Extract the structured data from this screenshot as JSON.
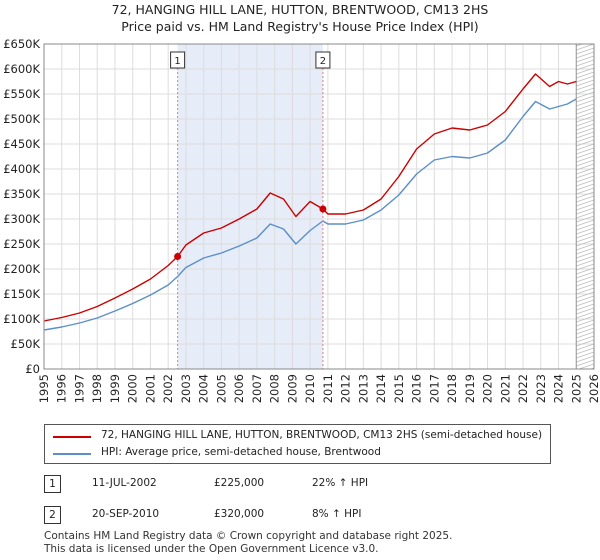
{
  "chart_data": {
    "type": "line",
    "title": "72, HANGING HILL LANE, HUTTON, BRENTWOOD, CM13 2HS",
    "subtitle": "Price paid vs. HM Land Registry's House Price Index (HPI)",
    "xlabel": "",
    "ylabel": "",
    "xlim": [
      1995,
      2026
    ],
    "ylim": [
      0,
      650000
    ],
    "yticks": [
      {
        "value": 0,
        "label": "£0"
      },
      {
        "value": 50000,
        "label": "£50K"
      },
      {
        "value": 100000,
        "label": "£100K"
      },
      {
        "value": 150000,
        "label": "£150K"
      },
      {
        "value": 200000,
        "label": "£200K"
      },
      {
        "value": 250000,
        "label": "£250K"
      },
      {
        "value": 300000,
        "label": "£300K"
      },
      {
        "value": 350000,
        "label": "£350K"
      },
      {
        "value": 400000,
        "label": "£400K"
      },
      {
        "value": 450000,
        "label": "£450K"
      },
      {
        "value": 500000,
        "label": "£500K"
      },
      {
        "value": 550000,
        "label": "£550K"
      },
      {
        "value": 600000,
        "label": "£600K"
      },
      {
        "value": 650000,
        "label": "£650K"
      }
    ],
    "xticks": [
      "1995",
      "1996",
      "1997",
      "1998",
      "1999",
      "2000",
      "2001",
      "2002",
      "2003",
      "2004",
      "2005",
      "2006",
      "2007",
      "2008",
      "2009",
      "2010",
      "2011",
      "2012",
      "2013",
      "2014",
      "2015",
      "2016",
      "2017",
      "2018",
      "2019",
      "2020",
      "2021",
      "2022",
      "2023",
      "2024",
      "2025",
      "2026"
    ],
    "grid": true,
    "shaded_period": [
      2002.53,
      2010.72
    ],
    "forecast_start": 2025.0,
    "series": [
      {
        "name": "72, HANGING HILL LANE, HUTTON, BRENTWOOD, CM13 2HS (semi-detached house)",
        "color": "#cc0000",
        "x": [
          1995.0,
          1996.0,
          1997.0,
          1998.0,
          1999.0,
          2000.0,
          2001.0,
          2002.0,
          2002.53,
          2003.0,
          2004.0,
          2005.0,
          2006.0,
          2007.0,
          2007.75,
          2008.5,
          2009.2,
          2010.0,
          2010.72,
          2011.0,
          2012.0,
          2013.0,
          2014.0,
          2015.0,
          2016.0,
          2017.0,
          2018.0,
          2019.0,
          2020.0,
          2021.0,
          2022.0,
          2022.7,
          2023.5,
          2024.0,
          2024.5,
          2025.0
        ],
        "values": [
          96000,
          103000,
          112000,
          125000,
          142000,
          160000,
          180000,
          207000,
          225000,
          248000,
          272000,
          282000,
          300000,
          320000,
          352000,
          340000,
          305000,
          335000,
          320000,
          310000,
          310000,
          318000,
          340000,
          385000,
          440000,
          470000,
          482000,
          478000,
          488000,
          515000,
          560000,
          590000,
          565000,
          575000,
          570000,
          575000
        ]
      },
      {
        "name": "HPI: Average price, semi-detached house, Brentwood",
        "color": "#5b8fc9",
        "x": [
          1995.0,
          1996.0,
          1997.0,
          1998.0,
          1999.0,
          2000.0,
          2001.0,
          2002.0,
          2002.53,
          2003.0,
          2004.0,
          2005.0,
          2006.0,
          2007.0,
          2007.75,
          2008.5,
          2009.2,
          2010.0,
          2010.72,
          2011.0,
          2012.0,
          2013.0,
          2014.0,
          2015.0,
          2016.0,
          2017.0,
          2018.0,
          2019.0,
          2020.0,
          2021.0,
          2022.0,
          2022.7,
          2023.5,
          2024.0,
          2024.5,
          2025.0
        ],
        "values": [
          78000,
          84000,
          92000,
          102000,
          116000,
          131000,
          148000,
          168000,
          185000,
          203000,
          222000,
          232000,
          246000,
          262000,
          290000,
          280000,
          250000,
          277000,
          296000,
          290000,
          290000,
          298000,
          318000,
          348000,
          390000,
          418000,
          425000,
          422000,
          432000,
          458000,
          505000,
          535000,
          520000,
          525000,
          530000,
          540000
        ]
      }
    ],
    "sales": [
      {
        "label": "1",
        "x": 2002.53,
        "value": 225000
      },
      {
        "label": "2",
        "x": 2010.72,
        "value": 320000
      }
    ]
  },
  "legend": {
    "red_label": "72, HANGING HILL LANE, HUTTON, BRENTWOOD, CM13 2HS (semi-detached house)",
    "blue_label": "HPI: Average price, semi-detached house, Brentwood"
  },
  "transactions": [
    {
      "num": "1",
      "date": "11-JUL-2002",
      "price": "£225,000",
      "hpi": "22% ↑ HPI"
    },
    {
      "num": "2",
      "date": "20-SEP-2010",
      "price": "£320,000",
      "hpi": "8% ↑ HPI"
    }
  ],
  "footer": {
    "line1": "Contains HM Land Registry data © Crown copyright and database right 2025.",
    "line2": "This data is licensed under the Open Government Licence v3.0."
  },
  "colors": {
    "price_line": "#cc0000",
    "hpi_line": "#5b8fc9",
    "shade": "#e6ecf8",
    "grid": "#dddddd"
  }
}
